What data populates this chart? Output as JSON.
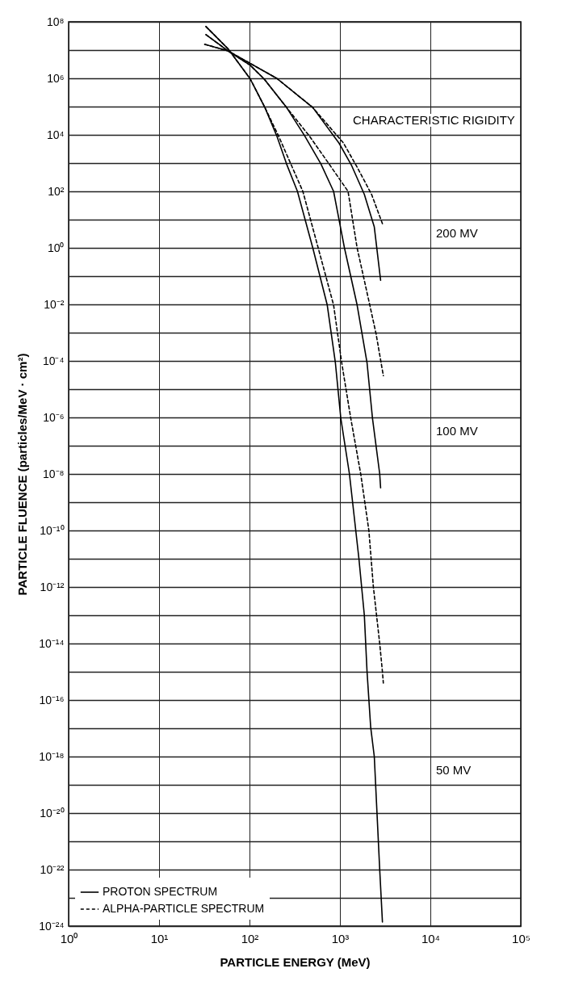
{
  "chart_data": {
    "type": "line",
    "xlabel": "PARTICLE ENERGY (MeV)",
    "ylabel": "PARTICLE FLUENCE (particles/MeV · cm²)",
    "log": "xy",
    "grid": true,
    "legend": "bottom left",
    "xlim": [
      1,
      100000
    ],
    "xticks": [
      {
        "value": 1,
        "label": "10⁰"
      },
      {
        "value": 10,
        "label": "10¹"
      },
      {
        "value": 100,
        "label": "10²"
      },
      {
        "value": 1000,
        "label": "10³"
      },
      {
        "value": 10000,
        "label": "10⁴"
      },
      {
        "value": 100000,
        "label": "10⁵"
      }
    ],
    "ylim": [
      1e-24,
      100000000.0
    ],
    "yticks": [
      {
        "value": 1e-24,
        "label": "10⁻²⁴"
      },
      {
        "value": 1e-23,
        "label": null
      },
      {
        "value": 1e-22,
        "label": "10⁻²²"
      },
      {
        "value": 1e-21,
        "label": null
      },
      {
        "value": 1e-20,
        "label": "10⁻²⁰"
      },
      {
        "value": 1e-19,
        "label": null
      },
      {
        "value": 1e-18,
        "label": "10⁻¹⁸"
      },
      {
        "value": 1e-17,
        "label": null
      },
      {
        "value": 1e-16,
        "label": "10⁻¹⁶"
      },
      {
        "value": 1e-15,
        "label": null
      },
      {
        "value": 1e-14,
        "label": "10⁻¹⁴"
      },
      {
        "value": 1e-13,
        "label": null
      },
      {
        "value": 1e-12,
        "label": "10⁻¹²"
      },
      {
        "value": 1e-11,
        "label": null
      },
      {
        "value": 1e-10,
        "label": "10⁻¹⁰"
      },
      {
        "value": 1e-09,
        "label": null
      },
      {
        "value": 1e-08,
        "label": "10⁻⁸"
      },
      {
        "value": 1e-07,
        "label": null
      },
      {
        "value": 1e-06,
        "label": "10⁻⁶"
      },
      {
        "value": 1e-05,
        "label": null
      },
      {
        "value": 0.0001,
        "label": "10⁻⁴"
      },
      {
        "value": 0.001,
        "label": null
      },
      {
        "value": 0.01,
        "label": "10⁻²"
      },
      {
        "value": 0.1,
        "label": null
      },
      {
        "value": 1,
        "label": "10⁰"
      },
      {
        "value": 10,
        "label": null
      },
      {
        "value": 100,
        "label": "10²"
      },
      {
        "value": 1000,
        "label": null
      },
      {
        "value": 10000,
        "label": "10⁴"
      },
      {
        "value": 100000,
        "label": null
      },
      {
        "value": 1000000,
        "label": "10⁶"
      },
      {
        "value": 10000000,
        "label": null
      },
      {
        "value": 100000000,
        "label": "10⁸"
      }
    ],
    "series": [
      {
        "name": "PROTON SPECTRUM",
        "color": "#000000",
        "line_style": "solid",
        "x": [
          32,
          58,
          200,
          501,
          977,
          1349,
          1862,
          2399,
          2818
        ],
        "values": [
          16000000.0,
          9300000.0,
          1000000.0,
          93000.0,
          5100.0,
          810,
          78,
          5.5,
          0.071
        ]
      },
      {
        "name": "ALPHA-PARTICLE SPECTRUM",
        "color": "#000000",
        "line_style": "dashed",
        "x": [
          32,
          58,
          200,
          501,
          1096,
          1585,
          2239,
          2951
        ],
        "values": [
          16000000.0,
          9300000.0,
          1000000.0,
          93000.0,
          5100.0,
          630,
          78,
          7.2
        ]
      },
      {
        "color": "#000000",
        "line_style": "solid",
        "x": [
          33,
          58,
          102,
          145,
          257,
          407,
          617,
          851,
          1122,
          1549,
          1995,
          2291,
          2754,
          2818
        ],
        "values": [
          35000000.0,
          9300000.0,
          2900000.0,
          950000.0,
          93000.0,
          9300.0,
          930,
          100,
          1,
          0.0095,
          8.5e-05,
          9.3e-07,
          1e-08,
          3.2e-09
        ]
      },
      {
        "color": "#000000",
        "line_style": "dashed",
        "x": [
          33,
          58,
          102,
          145,
          257,
          457,
          759,
          1230,
          1549,
          2138,
          2512,
          3020
        ],
        "values": [
          35000000.0,
          9300000.0,
          2900000.0,
          950000.0,
          93000.0,
          9300.0,
          930,
          100,
          1,
          0.0095,
          0.0009,
          3e-05
        ]
      },
      {
        "color": "#000000",
        "line_style": "solid",
        "x": [
          33,
          58,
          102,
          148,
          200,
          257,
          339,
          501,
          724,
          891,
          1023,
          1274,
          1622,
          1862,
          1995,
          2188,
          2399,
          2570,
          2754,
          2951
        ],
        "values": [
          68000000.0,
          11000000.0,
          950000.0,
          93000.0,
          9300.0,
          930,
          100,
          1,
          0.0095,
          8.5e-05,
          9.3e-07,
          1e-08,
          1e-11,
          1e-13,
          1e-15,
          1.1e-17,
          1e-18,
          1e-20,
          1e-22,
          1.4e-24
        ]
      },
      {
        "color": "#000000",
        "line_style": "dashed",
        "x": [
          33,
          58,
          102,
          148,
          209,
          389,
          575,
          851,
          1047,
          1318,
          1698,
          2089,
          2344,
          2754,
          2951,
          3020
        ],
        "values": [
          68000000.0,
          11000000.0,
          950000.0,
          93000.0,
          9300.0,
          100,
          1,
          0.0095,
          8.5e-05,
          9.3e-07,
          1e-08,
          1e-10,
          1e-12,
          1e-14,
          1e-15,
          4e-16
        ]
      }
    ],
    "annotations": [
      "CHARACTERISTIC RIGIDITY",
      "200 MV",
      "100 MV",
      "50 MV"
    ]
  }
}
